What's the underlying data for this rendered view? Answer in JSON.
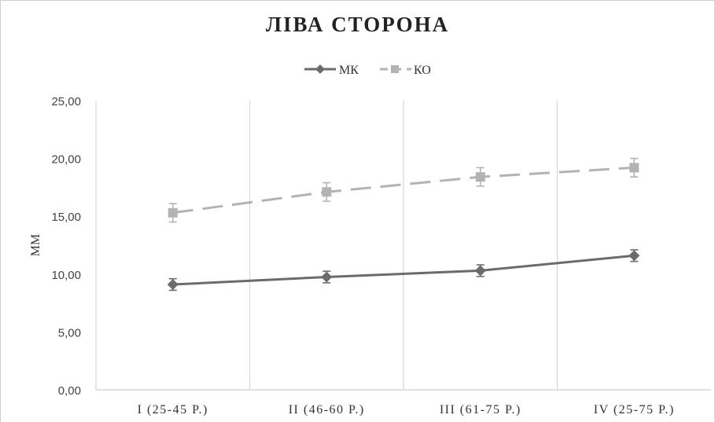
{
  "chart_data": {
    "type": "line",
    "title": "ЛІВА СТОРОНА",
    "ylabel": "ММ",
    "xlabel": "",
    "categories": [
      "I (25-45 Р.)",
      "II (46-60 Р.)",
      "III (61-75 Р.)",
      "IV (25-75 Р.)"
    ],
    "ylim": [
      0,
      25
    ],
    "yticks": [
      "0,00",
      "5,00",
      "10,00",
      "15,00",
      "20,00",
      "25,00"
    ],
    "ytick_values": [
      0,
      5,
      10,
      15,
      20,
      25
    ],
    "legend": {
      "position": "top"
    },
    "series": [
      {
        "name": "МК",
        "values": [
          9.1,
          9.75,
          10.3,
          11.6
        ],
        "errors": [
          0.5,
          0.5,
          0.5,
          0.5
        ],
        "color": "#6b6b6b",
        "marker": "diamond",
        "dash": "solid"
      },
      {
        "name": "КО",
        "values": [
          15.3,
          17.1,
          18.4,
          19.2
        ],
        "errors": [
          0.8,
          0.8,
          0.8,
          0.8
        ],
        "color": "#b3b3b3",
        "marker": "square",
        "dash": "dashed"
      }
    ]
  }
}
